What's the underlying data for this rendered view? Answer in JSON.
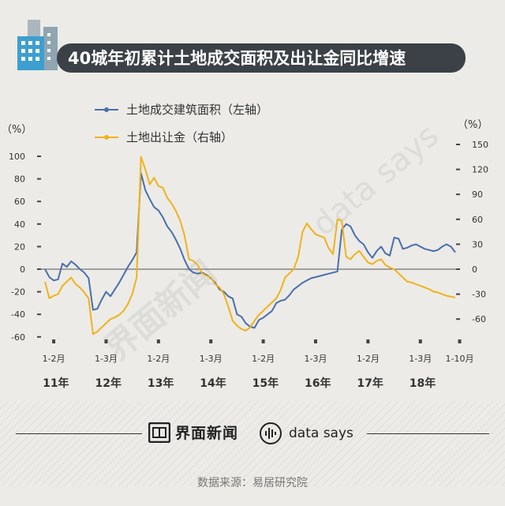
{
  "title": "40城年初累计土地成交面积及出让金同比增速",
  "chart_data": {
    "type": "line",
    "title": "40城年初累计土地成交面积及出让金同比增速",
    "left_axis": {
      "unit": "（%）",
      "ticks": [
        100,
        80,
        60,
        40,
        20,
        0,
        -20,
        -40,
        -60
      ],
      "ylim": [
        -60,
        100
      ]
    },
    "right_axis": {
      "unit": "（%）",
      "ticks": [
        150,
        120,
        90,
        60,
        30,
        0,
        -30,
        -60
      ],
      "ylim": [
        -60,
        150
      ]
    },
    "x_ticks": [
      {
        "label": "1-2月",
        "x": 2
      },
      {
        "label": "1-3月",
        "x": 14
      },
      {
        "label": "1-2月",
        "x": 26
      },
      {
        "label": "1-3月",
        "x": 38
      },
      {
        "label": "1-2月",
        "x": 50
      },
      {
        "label": "1-3月",
        "x": 62
      },
      {
        "label": "1-2月",
        "x": 74
      },
      {
        "label": "1-3月",
        "x": 86
      },
      {
        "label": "1-10月",
        "x": 95
      }
    ],
    "year_labels": [
      "11年",
      "12年",
      "13年",
      "14年",
      "15年",
      "16年",
      "17年",
      "18年"
    ],
    "series": [
      {
        "name": "土地成交建筑面积（左轴）",
        "axis": "left",
        "color": "#4a6fae",
        "points": [
          [
            0,
            0
          ],
          [
            1,
            -7
          ],
          [
            2,
            -10
          ],
          [
            3,
            -9
          ],
          [
            4,
            5
          ],
          [
            5,
            2
          ],
          [
            6,
            7
          ],
          [
            7,
            4
          ],
          [
            8,
            0
          ],
          [
            9,
            -3
          ],
          [
            10,
            -8
          ],
          [
            11,
            -36
          ],
          [
            12,
            -35
          ],
          [
            13,
            -27
          ],
          [
            14,
            -20
          ],
          [
            15,
            -24
          ],
          [
            16,
            -18
          ],
          [
            17,
            -12
          ],
          [
            18,
            -5
          ],
          [
            19,
            2
          ],
          [
            20,
            8
          ],
          [
            21,
            15
          ],
          [
            22,
            85
          ],
          [
            23,
            70
          ],
          [
            24,
            62
          ],
          [
            25,
            55
          ],
          [
            26,
            52
          ],
          [
            27,
            46
          ],
          [
            28,
            38
          ],
          [
            29,
            33
          ],
          [
            30,
            26
          ],
          [
            31,
            18
          ],
          [
            32,
            8
          ],
          [
            33,
            0
          ],
          [
            34,
            -3
          ],
          [
            35,
            -4
          ],
          [
            36,
            -3
          ],
          [
            37,
            -5
          ],
          [
            38,
            -8
          ],
          [
            39,
            -12
          ],
          [
            40,
            -18
          ],
          [
            41,
            -20
          ],
          [
            42,
            -24
          ],
          [
            43,
            -26
          ],
          [
            44,
            -40
          ],
          [
            45,
            -42
          ],
          [
            46,
            -48
          ],
          [
            47,
            -51
          ],
          [
            48,
            -52
          ],
          [
            49,
            -45
          ],
          [
            50,
            -43
          ],
          [
            51,
            -40
          ],
          [
            52,
            -37
          ],
          [
            53,
            -30
          ],
          [
            54,
            -28
          ],
          [
            55,
            -27
          ],
          [
            56,
            -23
          ],
          [
            57,
            -18
          ],
          [
            58,
            -15
          ],
          [
            59,
            -12
          ],
          [
            60,
            -10
          ],
          [
            61,
            -8
          ],
          [
            62,
            -7
          ],
          [
            63,
            -6
          ],
          [
            64,
            -5
          ],
          [
            65,
            -4
          ],
          [
            66,
            -3
          ],
          [
            67,
            -2
          ],
          [
            68,
            35
          ],
          [
            69,
            40
          ],
          [
            70,
            38
          ],
          [
            71,
            30
          ],
          [
            72,
            25
          ],
          [
            73,
            22
          ],
          [
            74,
            15
          ],
          [
            75,
            10
          ],
          [
            76,
            16
          ],
          [
            77,
            20
          ],
          [
            78,
            14
          ],
          [
            79,
            12
          ],
          [
            80,
            28
          ],
          [
            81,
            27
          ],
          [
            82,
            18
          ],
          [
            83,
            19
          ],
          [
            84,
            21
          ],
          [
            85,
            22
          ],
          [
            86,
            20
          ],
          [
            87,
            18
          ],
          [
            88,
            17
          ],
          [
            89,
            16
          ],
          [
            90,
            17
          ],
          [
            91,
            20
          ],
          [
            92,
            22
          ],
          [
            93,
            20
          ],
          [
            94,
            15
          ]
        ]
      },
      {
        "name": "土地出让金（右轴）",
        "axis": "right",
        "color": "#f0b21c",
        "points": [
          [
            0,
            -15
          ],
          [
            1,
            -35
          ],
          [
            2,
            -32
          ],
          [
            3,
            -30
          ],
          [
            4,
            -20
          ],
          [
            5,
            -15
          ],
          [
            6,
            -10
          ],
          [
            7,
            -18
          ],
          [
            8,
            -22
          ],
          [
            9,
            -28
          ],
          [
            10,
            -35
          ],
          [
            11,
            -78
          ],
          [
            12,
            -75
          ],
          [
            13,
            -70
          ],
          [
            14,
            -65
          ],
          [
            15,
            -60
          ],
          [
            16,
            -58
          ],
          [
            17,
            -55
          ],
          [
            18,
            -50
          ],
          [
            19,
            -42
          ],
          [
            20,
            -30
          ],
          [
            21,
            -10
          ],
          [
            22,
            135
          ],
          [
            23,
            120
          ],
          [
            24,
            102
          ],
          [
            25,
            110
          ],
          [
            26,
            100
          ],
          [
            27,
            98
          ],
          [
            28,
            86
          ],
          [
            29,
            79
          ],
          [
            30,
            70
          ],
          [
            31,
            58
          ],
          [
            32,
            40
          ],
          [
            33,
            12
          ],
          [
            34,
            10
          ],
          [
            35,
            5
          ],
          [
            36,
            -5
          ],
          [
            37,
            -8
          ],
          [
            38,
            -10
          ],
          [
            39,
            -18
          ],
          [
            40,
            -22
          ],
          [
            41,
            -30
          ],
          [
            42,
            -45
          ],
          [
            43,
            -62
          ],
          [
            44,
            -68
          ],
          [
            45,
            -72
          ],
          [
            46,
            -74
          ],
          [
            47,
            -70
          ],
          [
            48,
            -62
          ],
          [
            49,
            -55
          ],
          [
            50,
            -50
          ],
          [
            51,
            -45
          ],
          [
            52,
            -40
          ],
          [
            53,
            -35
          ],
          [
            54,
            -25
          ],
          [
            55,
            -10
          ],
          [
            56,
            -5
          ],
          [
            57,
            0
          ],
          [
            58,
            15
          ],
          [
            59,
            45
          ],
          [
            60,
            55
          ],
          [
            61,
            48
          ],
          [
            62,
            42
          ],
          [
            63,
            40
          ],
          [
            64,
            38
          ],
          [
            65,
            25
          ],
          [
            66,
            18
          ],
          [
            67,
            60
          ],
          [
            68,
            58
          ],
          [
            69,
            15
          ],
          [
            70,
            12
          ],
          [
            71,
            18
          ],
          [
            72,
            22
          ],
          [
            73,
            15
          ],
          [
            74,
            8
          ],
          [
            75,
            6
          ],
          [
            76,
            10
          ],
          [
            77,
            12
          ],
          [
            78,
            5
          ],
          [
            79,
            2
          ],
          [
            80,
            0
          ],
          [
            81,
            -5
          ],
          [
            82,
            -10
          ],
          [
            83,
            -15
          ],
          [
            84,
            -16
          ],
          [
            85,
            -18
          ],
          [
            86,
            -20
          ],
          [
            87,
            -22
          ],
          [
            88,
            -24
          ],
          [
            89,
            -27
          ],
          [
            90,
            -28
          ],
          [
            91,
            -30
          ],
          [
            92,
            -32
          ],
          [
            93,
            -33
          ],
          [
            94,
            -34
          ]
        ]
      }
    ]
  },
  "watermarks": [
    "界面新闻",
    "data says"
  ],
  "footer": {
    "brand_jiemian": "界面新闻",
    "brand_datasays": "data says",
    "source": "数据来源：易居研究院"
  }
}
